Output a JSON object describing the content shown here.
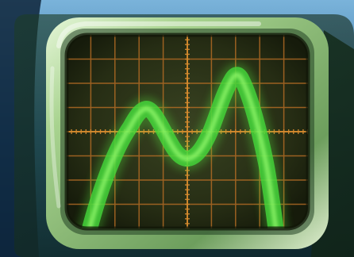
{
  "photo": {
    "subject": "oscilloscope-screen",
    "colors": {
      "background_top": "#6fa7cf",
      "background_bottom": "#123f63",
      "bezel_light": "#d7efc8",
      "bezel_mid": "#8fc07a",
      "bezel_dark": "#3f6e36",
      "screen_bg": "#2d3418",
      "grid_line": "#b76a22",
      "trace": "#47d63a",
      "trace_glow": "#8ef46c"
    }
  }
}
